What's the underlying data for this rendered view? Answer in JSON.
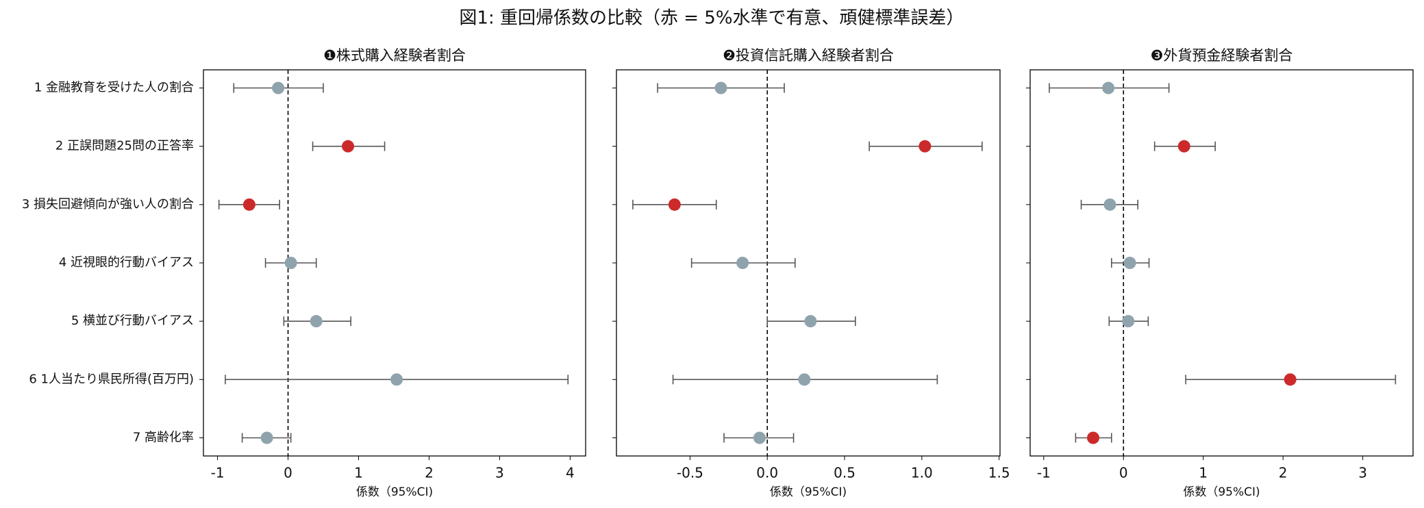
{
  "title": "図1: 重回帰係数の比較（赤 = 5%水準で有意、頑健標準誤差）",
  "chart_data": [
    {
      "type": "forest",
      "title": "❶株式購入経験者割合",
      "xlabel": "係数（95%CI)",
      "categories": [
        "1 金融教育を受けた人の割合",
        "2 正誤問題25問の正答率",
        "3 損失回避傾向が強い人の割合",
        "4 近視眼的行動バイアス",
        "5 横並び行動バイアス",
        "6 1人当たり県民所得(百万円)",
        "7 高齢化率"
      ],
      "values": [
        -0.14,
        0.85,
        -0.55,
        0.04,
        0.4,
        1.54,
        -0.3
      ],
      "lower": [
        -0.77,
        0.35,
        -0.98,
        -0.32,
        -0.06,
        -0.89,
        -0.65
      ],
      "upper": [
        0.5,
        1.37,
        -0.12,
        0.4,
        0.89,
        3.97,
        0.04
      ],
      "point_colors": [
        "#8fa3ad",
        "#cc2a2a",
        "#cc2a2a",
        "#8fa3ad",
        "#8fa3ad",
        "#8fa3ad",
        "#8fa3ad"
      ],
      "vline": 0,
      "xlim": [
        -1.2,
        4.22
      ],
      "xticks": [
        -1,
        0,
        1,
        2,
        3,
        4
      ]
    },
    {
      "type": "forest",
      "title": "❷投資信託購入経験者割合",
      "xlabel": "係数（95%CI)",
      "values": [
        -0.3,
        1.02,
        -0.6,
        -0.16,
        0.28,
        0.24,
        -0.05
      ],
      "lower": [
        -0.71,
        0.66,
        -0.87,
        -0.49,
        0.0,
        -0.61,
        -0.28
      ],
      "upper": [
        0.11,
        1.39,
        -0.33,
        0.18,
        0.57,
        1.1,
        0.17
      ],
      "point_colors": [
        "#8fa3ad",
        "#cc2a2a",
        "#cc2a2a",
        "#8fa3ad",
        "#8fa3ad",
        "#8fa3ad",
        "#8fa3ad"
      ],
      "vline": 0,
      "xlim": [
        -0.976,
        1.506
      ],
      "xticks": [
        -0.5,
        {
          "value": 0,
          "label": "0.0"
        },
        0.5,
        {
          "value": 1,
          "label": "1.0"
        },
        1.5
      ]
    },
    {
      "type": "forest",
      "title": "❸外貨預金経験者割合",
      "xlabel": "係数（95%CI)",
      "values": [
        -0.19,
        0.76,
        -0.17,
        0.08,
        0.06,
        2.09,
        -0.38
      ],
      "lower": [
        -0.93,
        0.39,
        -0.53,
        -0.15,
        -0.18,
        0.78,
        -0.6
      ],
      "upper": [
        0.57,
        1.15,
        0.18,
        0.32,
        0.31,
        3.41,
        -0.15
      ],
      "point_colors": [
        "#8fa3ad",
        "#cc2a2a",
        "#8fa3ad",
        "#8fa3ad",
        "#8fa3ad",
        "#cc2a2a",
        "#cc2a2a"
      ],
      "vline": 0,
      "xlim": [
        -1.17,
        3.63
      ],
      "xticks": [
        -1,
        0,
        1,
        2,
        3
      ]
    }
  ]
}
